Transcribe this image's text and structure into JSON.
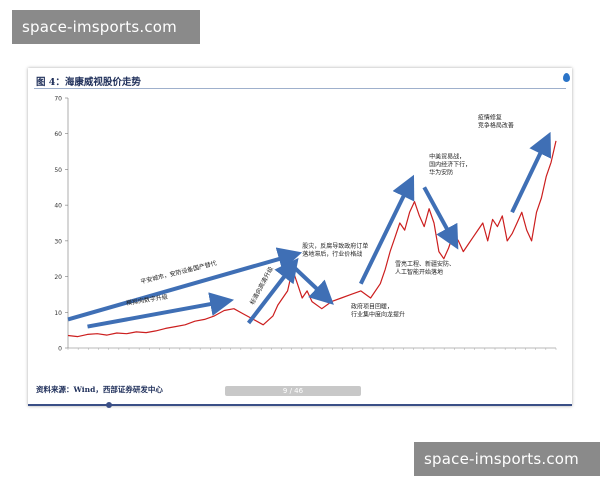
{
  "watermark_top": "space-imsports.com",
  "watermark_bottom": "space-imsports.com",
  "figure": {
    "title": "图 4：海康威视股价走势",
    "source": "资料来源：Wind，西部证券研发中心",
    "page_indicator": "9 / 46"
  },
  "colors": {
    "price_line": "#cc1f1f",
    "arrow": "#3f6fb5",
    "watermark_bg": "#8a8a8a",
    "title_text": "#1f2f5a"
  },
  "chart_data": {
    "type": "line",
    "title": "图 4：海康威视股价走势",
    "xlabel": "",
    "ylabel": "",
    "ylim": [
      0,
      70
    ],
    "yticks": [
      0,
      10,
      20,
      30,
      40,
      50,
      60,
      70
    ],
    "x_range": [
      0,
      100
    ],
    "grid": false,
    "series": [
      {
        "x": [
          0,
          2,
          4,
          6,
          8,
          10,
          12,
          14,
          16,
          18,
          20,
          22,
          24,
          26,
          28,
          30,
          32,
          34,
          36,
          38,
          40,
          42,
          43,
          45,
          46,
          47,
          48,
          49,
          50,
          52,
          54,
          56,
          58,
          60,
          62,
          64,
          65,
          66,
          67,
          68,
          69,
          70,
          71,
          72,
          73,
          74,
          75,
          76,
          77,
          78,
          79,
          80,
          81,
          82,
          83,
          84,
          85,
          86,
          87,
          88,
          89,
          90,
          91,
          92,
          93,
          94,
          95,
          96,
          97,
          98,
          99,
          100
        ],
        "values": [
          3.5,
          3.2,
          3.8,
          4.0,
          3.6,
          4.2,
          4.0,
          4.5,
          4.3,
          4.8,
          5.5,
          6.0,
          6.5,
          7.5,
          8.0,
          9.0,
          10.5,
          11.0,
          9.5,
          8.0,
          6.5,
          9.0,
          12,
          16,
          22,
          18,
          14,
          16,
          13,
          11,
          13,
          14,
          15,
          16,
          14,
          18,
          22,
          27,
          31,
          35,
          33,
          38,
          41,
          37,
          34,
          39,
          35,
          27,
          25,
          28,
          32,
          30,
          27,
          29,
          31,
          33,
          35,
          30,
          36,
          34,
          37,
          30,
          32,
          35,
          38,
          33,
          30,
          38,
          42,
          48,
          52,
          58
        ]
      }
    ],
    "annotations": [
      "平安城市，安防设备国产替代",
      "模拟向数字升级",
      "标清向高清升级",
      "股灾，反腐导致政府订单\n落地滞后，行业价格战",
      "政府项目回暖，\n行业集中度向龙提升",
      "雪亮工程、新疆安防、\n人工智能开始落地",
      "中美贸易战，\n国内经济下行，\n华为安防",
      "疫情修复\n竞争格局改善"
    ]
  }
}
